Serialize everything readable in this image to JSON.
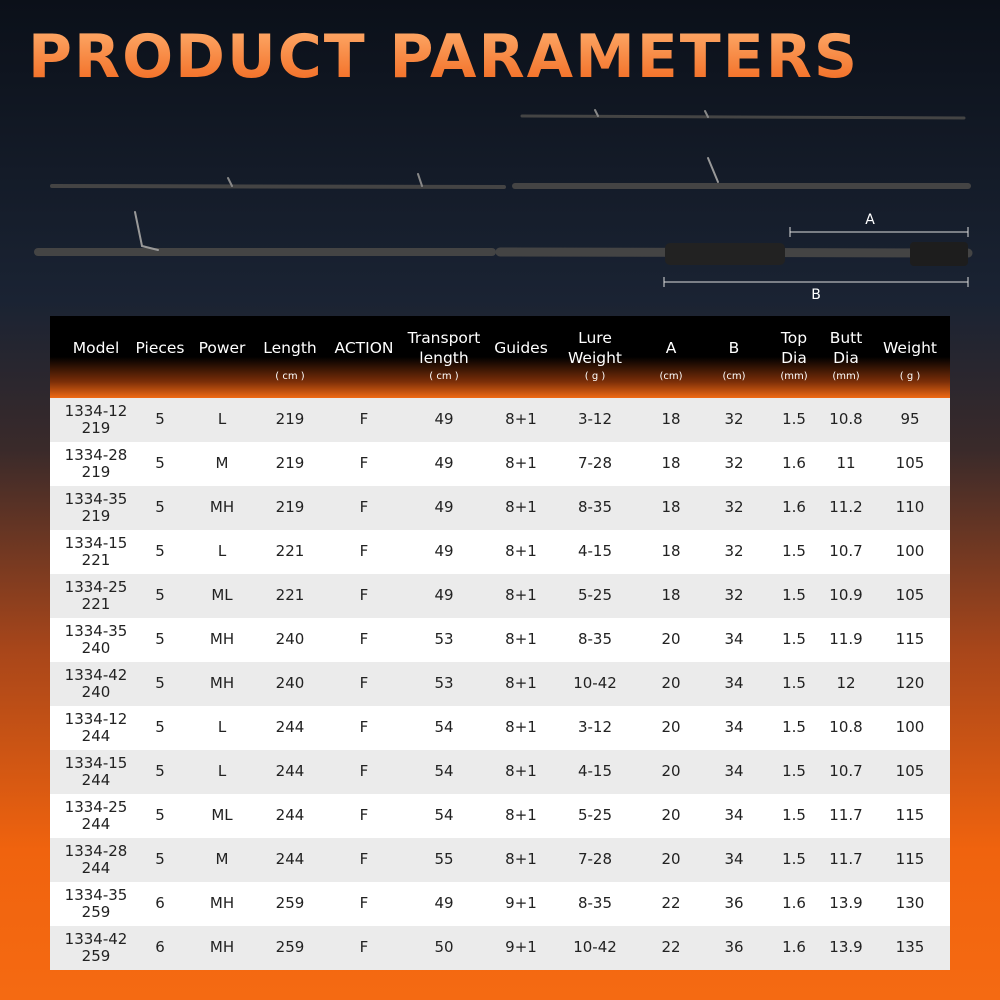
{
  "header": {
    "title": "PRODUCT PARAMETERS"
  },
  "diagram": {
    "label_a": "A",
    "label_b": "B"
  },
  "table": {
    "columns": [
      {
        "label": [
          "Model"
        ]
      },
      {
        "label": [
          "Pieces"
        ]
      },
      {
        "label": [
          "Power"
        ]
      },
      {
        "label": [
          "Length"
        ],
        "unit": "( cm )"
      },
      {
        "label": [
          "ACTION"
        ]
      },
      {
        "label": [
          "Transport",
          "length"
        ],
        "unit": "( cm )"
      },
      {
        "label": [
          "Guides"
        ]
      },
      {
        "label": [
          "Lure",
          "Weight"
        ],
        "unit": "( g )"
      },
      {
        "label": [
          "A"
        ],
        "unit": "(cm)"
      },
      {
        "label": [
          "B"
        ],
        "unit": "(cm)"
      },
      {
        "label": [
          "Top",
          "Dia"
        ],
        "unit": "(mm)"
      },
      {
        "label": [
          "Butt",
          "Dia"
        ],
        "unit": "(mm)"
      },
      {
        "label": [
          "Weight"
        ],
        "unit": "( g )"
      }
    ],
    "rows": [
      [
        [
          "1334-12",
          "219"
        ],
        "5",
        "L",
        "219",
        "F",
        "49",
        "8+1",
        "3-12",
        "18",
        "32",
        "1.5",
        "10.8",
        "95"
      ],
      [
        [
          "1334-28",
          "219"
        ],
        "5",
        "M",
        "219",
        "F",
        "49",
        "8+1",
        "7-28",
        "18",
        "32",
        "1.6",
        "11",
        "105"
      ],
      [
        [
          "1334-35",
          "219"
        ],
        "5",
        "MH",
        "219",
        "F",
        "49",
        "8+1",
        "8-35",
        "18",
        "32",
        "1.6",
        "11.2",
        "110"
      ],
      [
        [
          "1334-15",
          "221"
        ],
        "5",
        "L",
        "221",
        "F",
        "49",
        "8+1",
        "4-15",
        "18",
        "32",
        "1.5",
        "10.7",
        "100"
      ],
      [
        [
          "1334-25",
          "221"
        ],
        "5",
        "ML",
        "221",
        "F",
        "49",
        "8+1",
        "5-25",
        "18",
        "32",
        "1.5",
        "10.9",
        "105"
      ],
      [
        [
          "1334-35",
          "240"
        ],
        "5",
        "MH",
        "240",
        "F",
        "53",
        "8+1",
        "8-35",
        "20",
        "34",
        "1.5",
        "11.9",
        "115"
      ],
      [
        [
          "1334-42",
          "240"
        ],
        "5",
        "MH",
        "240",
        "F",
        "53",
        "8+1",
        "10-42",
        "20",
        "34",
        "1.5",
        "12",
        "120"
      ],
      [
        [
          "1334-12",
          "244"
        ],
        "5",
        "L",
        "244",
        "F",
        "54",
        "8+1",
        "3-12",
        "20",
        "34",
        "1.5",
        "10.8",
        "100"
      ],
      [
        [
          "1334-15",
          "244"
        ],
        "5",
        "L",
        "244",
        "F",
        "54",
        "8+1",
        "4-15",
        "20",
        "34",
        "1.5",
        "10.7",
        "105"
      ],
      [
        [
          "1334-25",
          "244"
        ],
        "5",
        "ML",
        "244",
        "F",
        "54",
        "8+1",
        "5-25",
        "20",
        "34",
        "1.5",
        "11.7",
        "115"
      ],
      [
        [
          "1334-28",
          "244"
        ],
        "5",
        "M",
        "244",
        "F",
        "55",
        "8+1",
        "7-28",
        "20",
        "34",
        "1.5",
        "11.7",
        "115"
      ],
      [
        [
          "1334-35",
          "259"
        ],
        "6",
        "MH",
        "259",
        "F",
        "49",
        "9+1",
        "8-35",
        "22",
        "36",
        "1.6",
        "13.9",
        "130"
      ],
      [
        [
          "1334-42",
          "259"
        ],
        "6",
        "MH",
        "259",
        "F",
        "50",
        "9+1",
        "10-42",
        "22",
        "36",
        "1.6",
        "13.9",
        "135"
      ]
    ]
  }
}
